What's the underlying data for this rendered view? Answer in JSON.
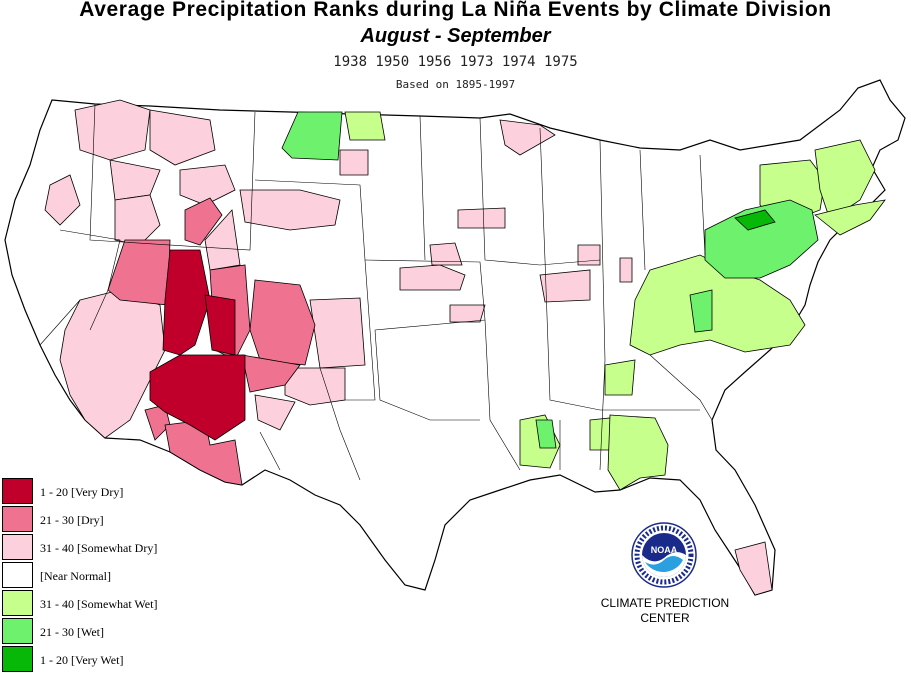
{
  "header": {
    "title": "Average  Precipitation  Ranks  during  La  Niña  Events  by  Climate  Division",
    "subtitle": "August  -  September",
    "years": "1938 1950 1956 1973 1974 1975",
    "basis": "Based on 1895-1997"
  },
  "legend": {
    "items": [
      {
        "label": "1 - 20 [Very Dry]",
        "color": "#c0002a"
      },
      {
        "label": "21 - 30 [Dry]",
        "color": "#ef7390"
      },
      {
        "label": "31 - 40 [Somewhat Dry]",
        "color": "#fdd0dd"
      },
      {
        "label": " [Near Normal]",
        "color": "#ffffff"
      },
      {
        "label": "31 - 40 [Somewhat Wet]",
        "color": "#c6ff8c"
      },
      {
        "label": "21 - 30 [Wet]",
        "color": "#6ef26e"
      },
      {
        "label": "1 - 20 [Very Wet]",
        "color": "#08b808"
      }
    ]
  },
  "branding": {
    "logo_icon": "noaa-logo-icon",
    "center_line1": "CLIMATE PREDICTION",
    "center_line2": "CENTER"
  },
  "regions": [
    {
      "name": "region-very-dry-southwest",
      "category": "very-dry"
    },
    {
      "name": "region-dry-southwest",
      "category": "dry"
    },
    {
      "name": "region-somewhat-dry-west",
      "category": "somewhat-dry"
    },
    {
      "name": "region-somewhat-wet-east",
      "category": "somewhat-wet"
    },
    {
      "name": "region-wet-east",
      "category": "wet"
    },
    {
      "name": "region-very-wet-pennsylvania",
      "category": "very-wet"
    }
  ]
}
